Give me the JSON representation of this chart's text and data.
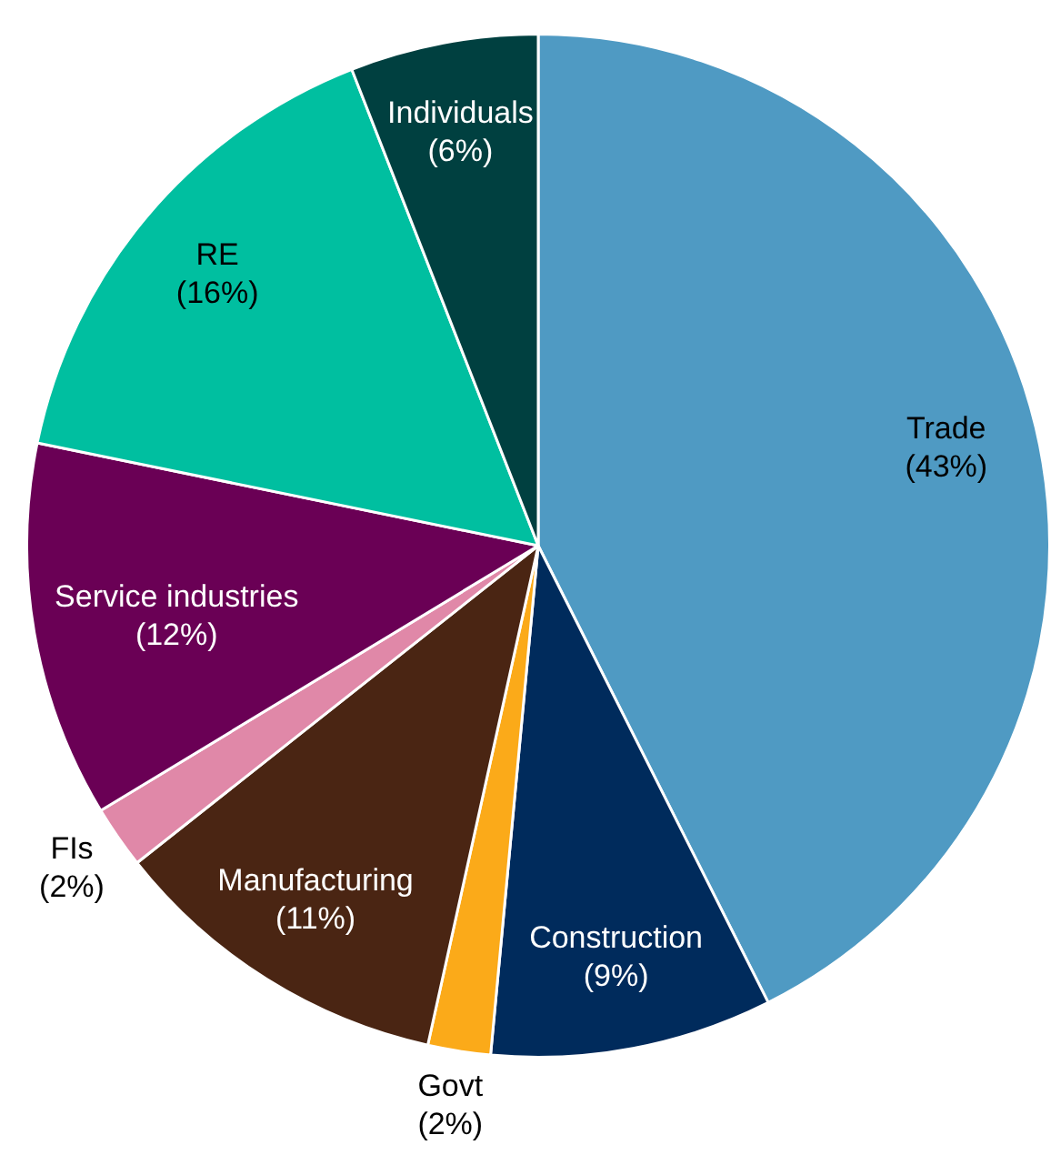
{
  "chart_data": {
    "type": "pie",
    "categories": [
      "Trade",
      "Construction",
      "Govt",
      "Manufacturing",
      "FIs",
      "Service industries",
      "RE",
      "Individuals"
    ],
    "values": [
      43,
      9,
      2,
      11,
      2,
      12,
      16,
      6
    ],
    "colors": [
      "#4f9ac3",
      "#002b5c",
      "#fbaa19",
      "#4a2513",
      "#e088a8",
      "#6a0055",
      "#00bfa0",
      "#004040"
    ],
    "value_labels": [
      "(43%)",
      "(9%)",
      "(2%)",
      "(11%)",
      "(2%)",
      "(12%)",
      "(16%)",
      "(6%)"
    ],
    "legend": false
  }
}
